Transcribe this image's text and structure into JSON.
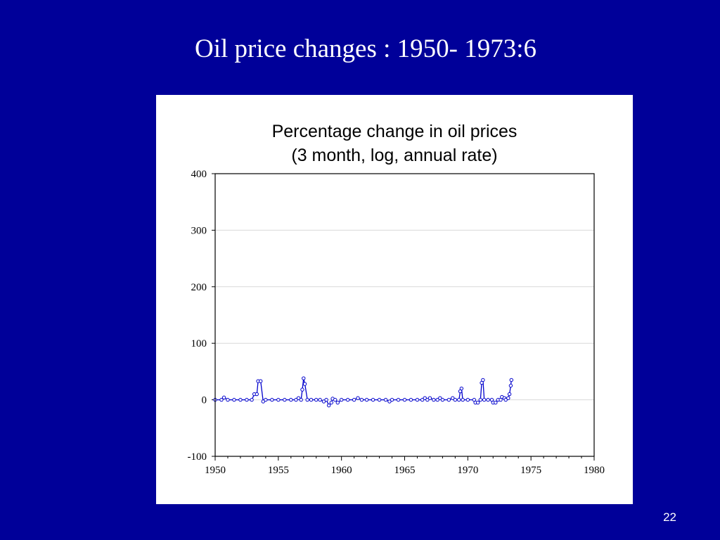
{
  "slide": {
    "title": "Oil price changes : 1950- 1973:6",
    "page_number": "22",
    "background_color": "#000099"
  },
  "chart_data": {
    "type": "line",
    "title_line1": "Percentage change in oil prices",
    "title_line2": "(3 month, log, annual rate)",
    "xlabel": "",
    "ylabel": "",
    "xlim": [
      1950,
      1980
    ],
    "ylim": [
      -100,
      400
    ],
    "x_ticks": [
      1950,
      1955,
      1960,
      1965,
      1970,
      1975,
      1980
    ],
    "y_ticks": [
      -100,
      0,
      100,
      200,
      300,
      400
    ],
    "grid": "horizontal",
    "marker": "circle",
    "line_color": "#0000cc",
    "series": [
      {
        "points": [
          [
            1950.0,
            0
          ],
          [
            1950.5,
            0
          ],
          [
            1950.7,
            4
          ],
          [
            1951.0,
            0
          ],
          [
            1951.5,
            0
          ],
          [
            1952.0,
            0
          ],
          [
            1952.5,
            0
          ],
          [
            1952.9,
            0
          ],
          [
            1953.1,
            10
          ],
          [
            1953.3,
            10
          ],
          [
            1953.4,
            33
          ],
          [
            1953.6,
            33
          ],
          [
            1953.8,
            -3
          ],
          [
            1954.0,
            0
          ],
          [
            1954.5,
            0
          ],
          [
            1955.0,
            0
          ],
          [
            1955.5,
            0
          ],
          [
            1956.0,
            0
          ],
          [
            1956.4,
            0
          ],
          [
            1956.6,
            3
          ],
          [
            1956.8,
            0
          ],
          [
            1956.9,
            18
          ],
          [
            1957.0,
            38
          ],
          [
            1957.1,
            28
          ],
          [
            1957.3,
            0
          ],
          [
            1957.6,
            0
          ],
          [
            1958.0,
            0
          ],
          [
            1958.3,
            0
          ],
          [
            1958.6,
            -3
          ],
          [
            1958.8,
            0
          ],
          [
            1959.0,
            -10
          ],
          [
            1959.2,
            -5
          ],
          [
            1959.3,
            2
          ],
          [
            1959.5,
            0
          ],
          [
            1959.7,
            -5
          ],
          [
            1960.0,
            0
          ],
          [
            1960.5,
            0
          ],
          [
            1961.0,
            0
          ],
          [
            1961.3,
            3
          ],
          [
            1961.6,
            0
          ],
          [
            1962.0,
            0
          ],
          [
            1962.5,
            0
          ],
          [
            1963.0,
            0
          ],
          [
            1963.5,
            0
          ],
          [
            1963.8,
            -3
          ],
          [
            1964.0,
            0
          ],
          [
            1964.5,
            0
          ],
          [
            1965.0,
            0
          ],
          [
            1965.5,
            0
          ],
          [
            1966.0,
            0
          ],
          [
            1966.4,
            0
          ],
          [
            1966.6,
            3
          ],
          [
            1966.8,
            0
          ],
          [
            1967.0,
            3
          ],
          [
            1967.3,
            0
          ],
          [
            1967.6,
            0
          ],
          [
            1967.8,
            3
          ],
          [
            1968.0,
            0
          ],
          [
            1968.5,
            0
          ],
          [
            1968.8,
            3
          ],
          [
            1969.0,
            0
          ],
          [
            1969.3,
            0
          ],
          [
            1969.4,
            15
          ],
          [
            1969.5,
            20
          ],
          [
            1969.6,
            0
          ],
          [
            1970.0,
            0
          ],
          [
            1970.5,
            0
          ],
          [
            1970.6,
            -5
          ],
          [
            1970.8,
            -5
          ],
          [
            1971.0,
            0
          ],
          [
            1971.1,
            30
          ],
          [
            1971.2,
            35
          ],
          [
            1971.3,
            0
          ],
          [
            1971.6,
            0
          ],
          [
            1971.9,
            0
          ],
          [
            1972.0,
            -5
          ],
          [
            1972.2,
            -5
          ],
          [
            1972.4,
            0
          ],
          [
            1972.6,
            0
          ],
          [
            1972.7,
            5
          ],
          [
            1972.9,
            3
          ],
          [
            1973.0,
            0
          ],
          [
            1973.2,
            3
          ],
          [
            1973.3,
            10
          ],
          [
            1973.4,
            25
          ],
          [
            1973.45,
            35
          ]
        ]
      }
    ]
  }
}
